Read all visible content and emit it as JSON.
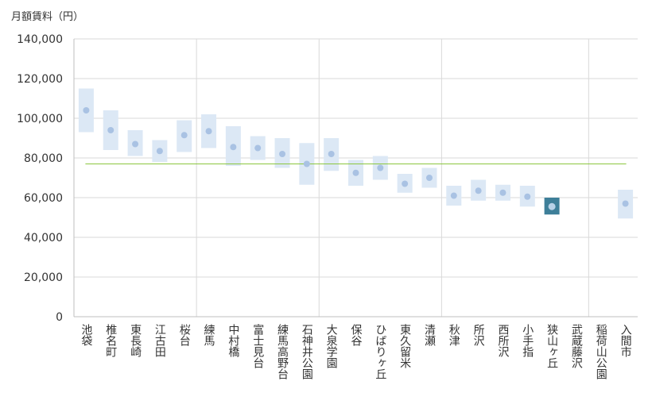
{
  "chart_data": {
    "type": "range-dot",
    "title": "",
    "ylabel": "月額賃料（円）",
    "xlabel": "",
    "ylim": [
      0,
      140000
    ],
    "ytick_step": 20000,
    "ytick_labels": [
      "0",
      "20,000",
      "40,000",
      "60,000",
      "80,000",
      "100,000",
      "120,000",
      "140,000"
    ],
    "reference_line": 77000,
    "group_separators_after": [
      4,
      9,
      14,
      20
    ],
    "categories": [
      "池袋",
      "椎名町",
      "東長崎",
      "江古田",
      "桜台",
      "練馬",
      "中村橋",
      "富士見台",
      "練馬高野台",
      "石神井公園",
      "大泉学園",
      "保谷",
      "ひばりヶ丘",
      "東久留米",
      "清瀬",
      "秋津",
      "所沢",
      "西所沢",
      "小手指",
      "狭山ヶ丘",
      "武蔵藤沢",
      "稲荷山公園",
      "入間市"
    ],
    "values": [
      104000,
      94000,
      87000,
      83500,
      91500,
      93500,
      85500,
      85000,
      82000,
      77000,
      82000,
      72500,
      75000,
      67000,
      70000,
      61000,
      63500,
      62500,
      60500,
      55500,
      null,
      null,
      57000
    ],
    "ranges": [
      [
        93000,
        115000
      ],
      [
        84000,
        104000
      ],
      [
        81000,
        94000
      ],
      [
        78000,
        89000
      ],
      [
        83000,
        99000
      ],
      [
        85000,
        102000
      ],
      [
        76000,
        96000
      ],
      [
        79000,
        91000
      ],
      [
        75000,
        90000
      ],
      [
        66500,
        87500
      ],
      [
        73500,
        90000
      ],
      [
        66000,
        79000
      ],
      [
        69000,
        81000
      ],
      [
        62500,
        72000
      ],
      [
        65000,
        75000
      ],
      [
        56000,
        66000
      ],
      [
        58500,
        69000
      ],
      [
        58500,
        66500
      ],
      [
        55500,
        66000
      ],
      [
        51500,
        60000
      ],
      null,
      null,
      [
        49500,
        64000
      ]
    ],
    "highlight_index": 19
  },
  "colors": {
    "range_fill": "#dce8f5",
    "dot": "#a9c2e3",
    "highlight_fill": "#3e7f99",
    "highlight_dot": "#b8d2e8",
    "reference_line": "#8cc63f",
    "grid": "#d9d9d9",
    "axis": "#bfbfbf"
  }
}
